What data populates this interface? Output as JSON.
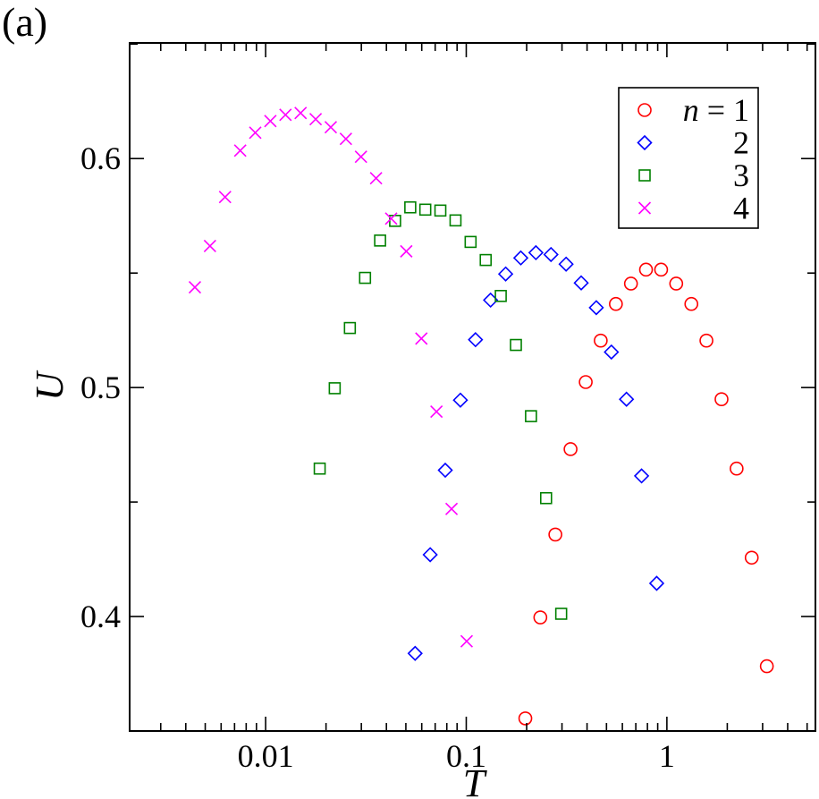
{
  "chart_data": {
    "type": "scatter",
    "panel_label": "(a)",
    "xlabel": "T",
    "ylabel": "U",
    "xscale": "log",
    "xlim": [
      0.0021,
      5.5
    ],
    "ylim": [
      0.35,
      0.6505
    ],
    "x_ticks": [
      {
        "value": 0.01,
        "label": "0.01"
      },
      {
        "value": 0.1,
        "label": "0.1"
      },
      {
        "value": 1,
        "label": "1"
      }
    ],
    "y_ticks": [
      {
        "value": 0.4,
        "label": "0.4"
      },
      {
        "value": 0.5,
        "label": "0.5"
      },
      {
        "value": 0.6,
        "label": "0.6"
      }
    ],
    "legend_position": "top-right",
    "series": [
      {
        "name": "n = 1",
        "legend_label": "1",
        "legend_prefix": "n",
        "legend_eq": " = ",
        "marker": "circle",
        "color": "#ff0000",
        "points": [
          [
            0.197,
            0.3555
          ],
          [
            0.234,
            0.3996
          ],
          [
            0.278,
            0.4358
          ],
          [
            0.331,
            0.4731
          ],
          [
            0.394,
            0.5024
          ],
          [
            0.468,
            0.5205
          ],
          [
            0.557,
            0.5365
          ],
          [
            0.662,
            0.5454
          ],
          [
            0.787,
            0.5515
          ],
          [
            0.936,
            0.5515
          ],
          [
            1.113,
            0.5454
          ],
          [
            1.324,
            0.5365
          ],
          [
            1.574,
            0.5205
          ],
          [
            1.872,
            0.4949
          ],
          [
            2.226,
            0.4646
          ],
          [
            2.647,
            0.4257
          ],
          [
            3.148,
            0.3783
          ]
        ]
      },
      {
        "name": "n = 2",
        "legend_label": "2",
        "marker": "diamond",
        "color": "#0000ff",
        "points": [
          [
            0.0556,
            0.3839
          ],
          [
            0.0661,
            0.427
          ],
          [
            0.0786,
            0.4639
          ],
          [
            0.0935,
            0.4945
          ],
          [
            0.1112,
            0.5209
          ],
          [
            0.1322,
            0.5382
          ],
          [
            0.1572,
            0.5496
          ],
          [
            0.187,
            0.5566
          ],
          [
            0.2224,
            0.5589
          ],
          [
            0.2644,
            0.5581
          ],
          [
            0.3145,
            0.5539
          ],
          [
            0.374,
            0.5457
          ],
          [
            0.4448,
            0.5349
          ],
          [
            0.5289,
            0.5155
          ],
          [
            0.629,
            0.4949
          ],
          [
            0.748,
            0.4614
          ],
          [
            0.8896,
            0.4145
          ]
        ]
      },
      {
        "name": "n = 3",
        "legend_label": "3",
        "marker": "square",
        "color": "#008000",
        "points": [
          [
            0.0186,
            0.4646
          ],
          [
            0.0221,
            0.4997
          ],
          [
            0.0263,
            0.526
          ],
          [
            0.0313,
            0.5479
          ],
          [
            0.0372,
            0.5642
          ],
          [
            0.0442,
            0.5728
          ],
          [
            0.0526,
            0.5787
          ],
          [
            0.0625,
            0.5777
          ],
          [
            0.0743,
            0.5773
          ],
          [
            0.0884,
            0.573
          ],
          [
            0.1051,
            0.5636
          ],
          [
            0.125,
            0.5557
          ],
          [
            0.1486,
            0.54
          ],
          [
            0.1768,
            0.5186
          ],
          [
            0.2102,
            0.4875
          ],
          [
            0.25,
            0.4517
          ],
          [
            0.2973,
            0.4012
          ]
        ]
      },
      {
        "name": "n = 4",
        "legend_label": "4",
        "marker": "x",
        "color": "#ff00ff",
        "points": [
          [
            0.00444,
            0.5438
          ],
          [
            0.00528,
            0.5618
          ],
          [
            0.00628,
            0.5832
          ],
          [
            0.00747,
            0.6035
          ],
          [
            0.00888,
            0.6113
          ],
          [
            0.01056,
            0.6164
          ],
          [
            0.01256,
            0.6191
          ],
          [
            0.01494,
            0.6199
          ],
          [
            0.01776,
            0.6172
          ],
          [
            0.02112,
            0.6137
          ],
          [
            0.02512,
            0.6086
          ],
          [
            0.02987,
            0.6008
          ],
          [
            0.03552,
            0.5914
          ],
          [
            0.04224,
            0.5738
          ],
          [
            0.05024,
            0.5595
          ],
          [
            0.05974,
            0.5214
          ],
          [
            0.07104,
            0.4895
          ],
          [
            0.08448,
            0.447
          ],
          [
            0.10047,
            0.3892
          ]
        ]
      }
    ]
  }
}
